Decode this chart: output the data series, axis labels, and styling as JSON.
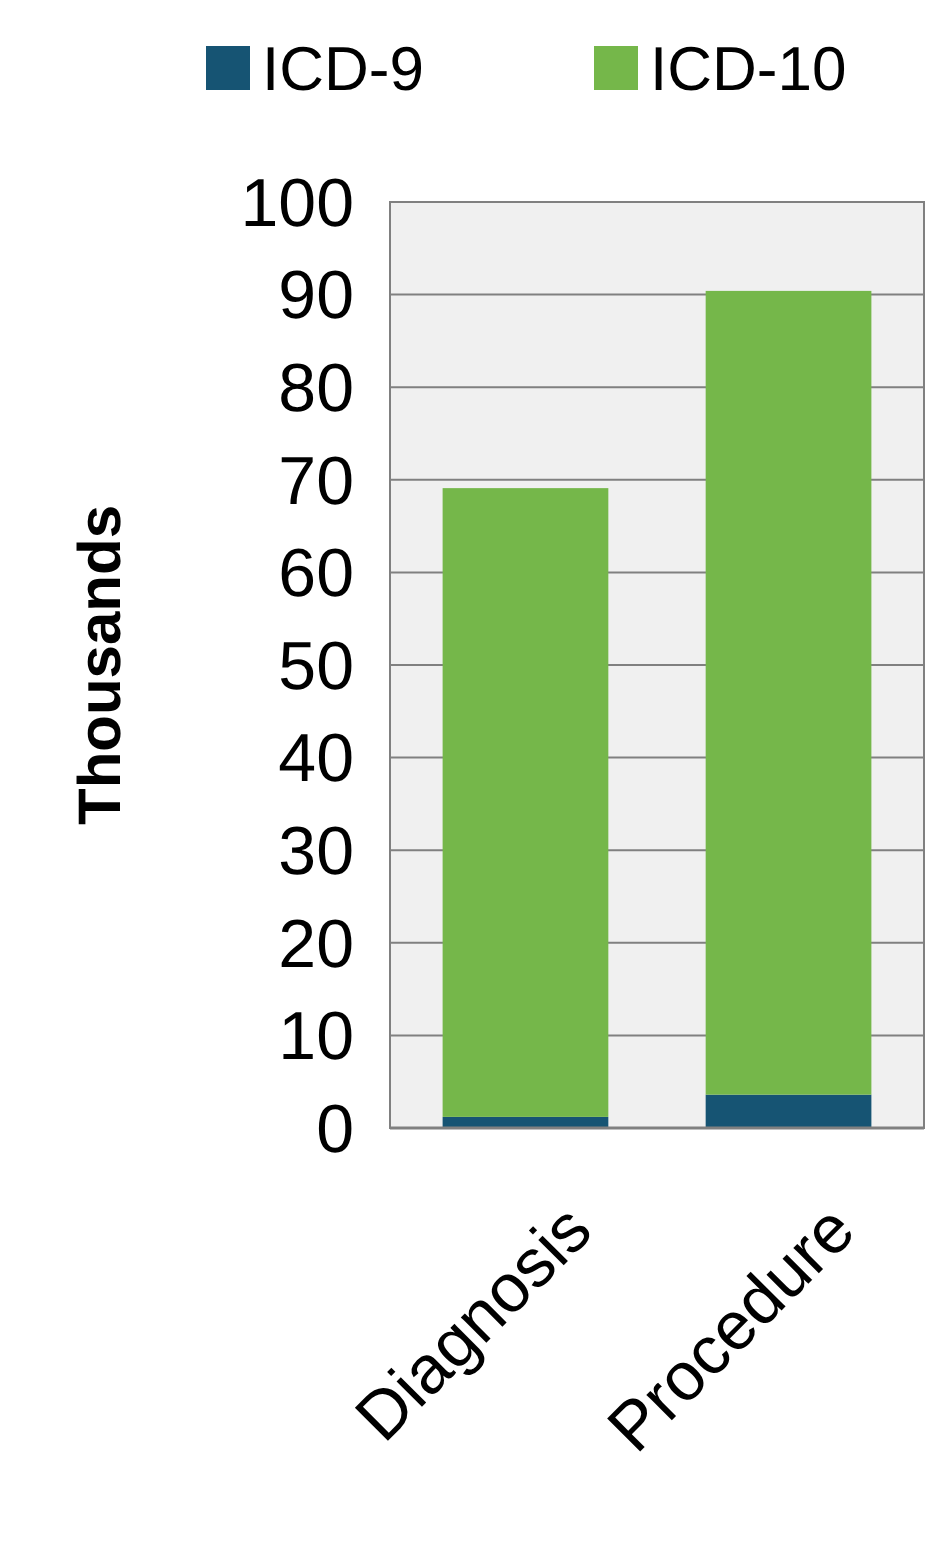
{
  "chart_data": {
    "type": "bar",
    "stacked": true,
    "ylabel": "Thousands",
    "categories": [
      "Diagnosis",
      "Procedure"
    ],
    "series": [
      {
        "name": "ICD-9",
        "color": "#165473",
        "values": [
          1.2,
          3.6
        ]
      },
      {
        "name": "ICD-10",
        "color": "#75b74a",
        "values": [
          67.9,
          86.8
        ]
      }
    ],
    "ylim": [
      0,
      100
    ],
    "yticks": [
      0,
      10,
      20,
      30,
      40,
      50,
      60,
      70,
      80,
      90,
      100
    ],
    "grid": "y",
    "legend": "top"
  }
}
